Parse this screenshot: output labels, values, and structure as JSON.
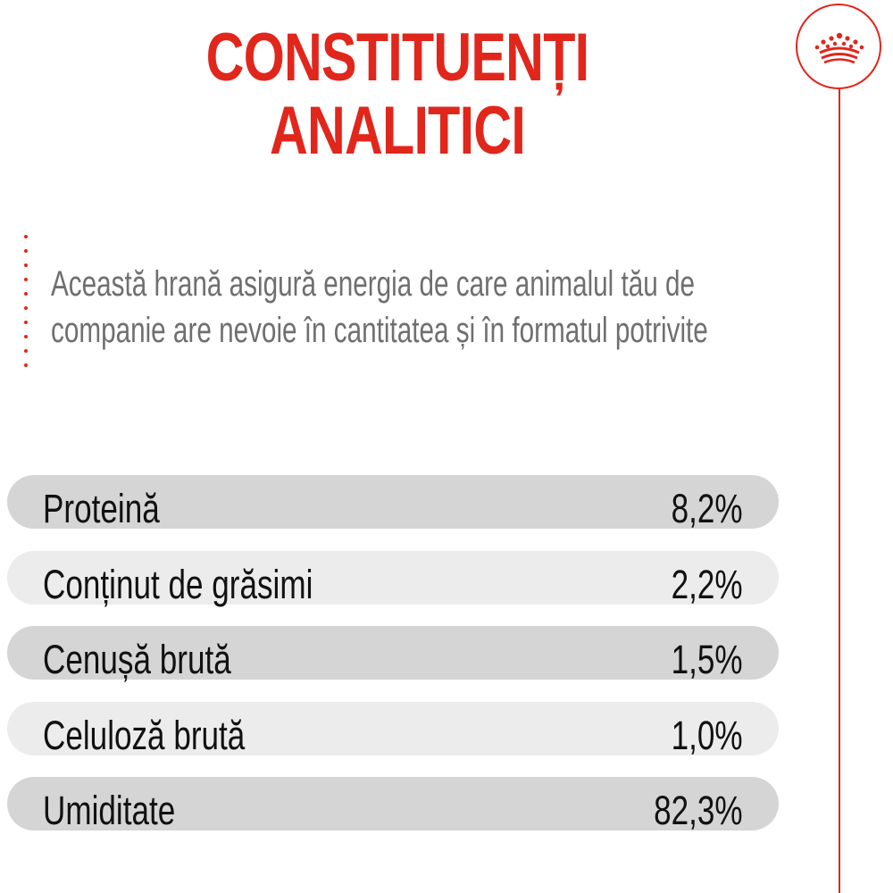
{
  "title": {
    "line1": "CONSTITUENȚI",
    "line2": "ANALITICI"
  },
  "description": {
    "line1": "Această hrană asigură energia de care animalul tău de",
    "line2": "companie are nevoie în cantitatea și în formatul potrivite"
  },
  "constituents": [
    {
      "label": "Proteină",
      "value": "8,2%"
    },
    {
      "label": "Conținut de grăsimi",
      "value": "2,2%"
    },
    {
      "label": "Cenușă brută",
      "value": "1,5%"
    },
    {
      "label": "Celuloză brută",
      "value": "1,0%"
    },
    {
      "label": "Umiditate",
      "value": "82,3%"
    }
  ],
  "brand": {
    "logo_icon": "crown-icon",
    "accent_color": "#e1261c"
  }
}
